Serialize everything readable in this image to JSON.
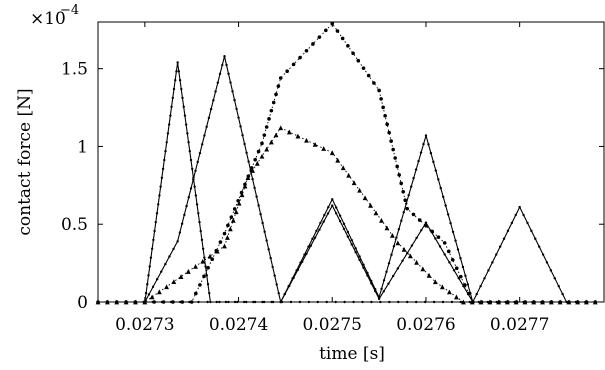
{
  "chart_data": {
    "type": "line",
    "xlabel": "time [s]",
    "ylabel": "contact force [N]",
    "y_exponent_label": "×10",
    "y_exponent_power": "−4",
    "xlim": [
      0.02725,
      0.02779
    ],
    "ylim": [
      0,
      1.8
    ],
    "x_ticks": [
      0.0273,
      0.0274,
      0.0275,
      0.0276,
      0.0277
    ],
    "x_tick_labels": [
      "0.0273",
      "0.0274",
      "0.0275",
      "0.0276",
      "0.0277"
    ],
    "y_ticks": [
      0,
      0.5,
      1,
      1.5
    ],
    "y_tick_labels": [
      "0",
      "0.5",
      "1",
      "1.5"
    ],
    "grid": false,
    "legend": "none",
    "series": [
      {
        "style": "solid-dot",
        "points": [
          [
            0.02725,
            0
          ],
          [
            0.0273,
            0
          ],
          [
            0.027335,
            1.54
          ],
          [
            0.02737,
            0
          ],
          [
            0.02779,
            0
          ]
        ]
      },
      {
        "style": "solid-dot",
        "points": [
          [
            0.02725,
            0
          ],
          [
            0.0273,
            0
          ],
          [
            0.027335,
            0.39
          ],
          [
            0.027385,
            1.58
          ],
          [
            0.027445,
            0
          ],
          [
            0.0275,
            0.66
          ],
          [
            0.02755,
            0.03
          ],
          [
            0.0276,
            1.07
          ],
          [
            0.02765,
            0
          ],
          [
            0.02779,
            0
          ]
        ]
      },
      {
        "style": "solid-dot",
        "points": [
          [
            0.02725,
            0
          ],
          [
            0.027445,
            0
          ],
          [
            0.0275,
            0.62
          ],
          [
            0.02755,
            0.02
          ],
          [
            0.0276,
            0.51
          ],
          [
            0.02765,
            0
          ],
          [
            0.0277,
            0.61
          ],
          [
            0.02775,
            0
          ],
          [
            0.02779,
            0
          ]
        ]
      },
      {
        "style": "dotted-triangle",
        "points": [
          [
            0.02725,
            0
          ],
          [
            0.0273,
            0
          ],
          [
            0.027385,
            0.36
          ],
          [
            0.02741,
            0.8
          ],
          [
            0.027445,
            1.12
          ],
          [
            0.0275,
            0.96
          ],
          [
            0.02757,
            0.38
          ],
          [
            0.02761,
            0.13
          ],
          [
            0.02764,
            0
          ],
          [
            0.02779,
            0
          ]
        ]
      },
      {
        "style": "dotted-dot",
        "points": [
          [
            0.02725,
            0
          ],
          [
            0.02735,
            0
          ],
          [
            0.027385,
            0.44
          ],
          [
            0.027425,
            1.02
          ],
          [
            0.027445,
            1.44
          ],
          [
            0.0275,
            1.79
          ],
          [
            0.02755,
            1.36
          ],
          [
            0.02758,
            0.6
          ],
          [
            0.02762,
            0.38
          ],
          [
            0.02765,
            0
          ],
          [
            0.02779,
            0
          ]
        ]
      }
    ]
  }
}
